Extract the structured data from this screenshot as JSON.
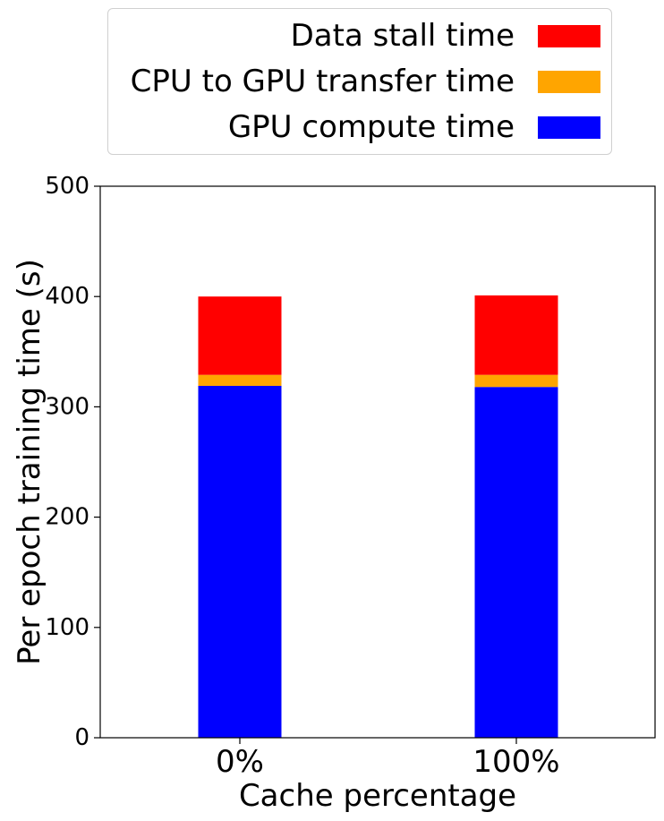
{
  "chart_data": {
    "type": "bar",
    "stacked": true,
    "categories": [
      "0%",
      "100%"
    ],
    "series": [
      {
        "name": "GPU compute time",
        "values": [
          319,
          318
        ],
        "color": "#0000ff"
      },
      {
        "name": "CPU to GPU transfer time",
        "values": [
          10,
          11
        ],
        "color": "#ffa500"
      },
      {
        "name": "Data stall time",
        "values": [
          71,
          72
        ],
        "color": "#ff0000"
      }
    ],
    "title": "",
    "xlabel": "Cache percentage",
    "ylabel": "Per epoch training time (s)",
    "ylim": [
      0,
      500
    ],
    "yticks": [
      0,
      100,
      200,
      300,
      400,
      500
    ],
    "legend": {
      "placement": "top-outside",
      "order": [
        "Data stall time",
        "CPU to GPU transfer time",
        "GPU compute time"
      ]
    },
    "grid": false
  }
}
